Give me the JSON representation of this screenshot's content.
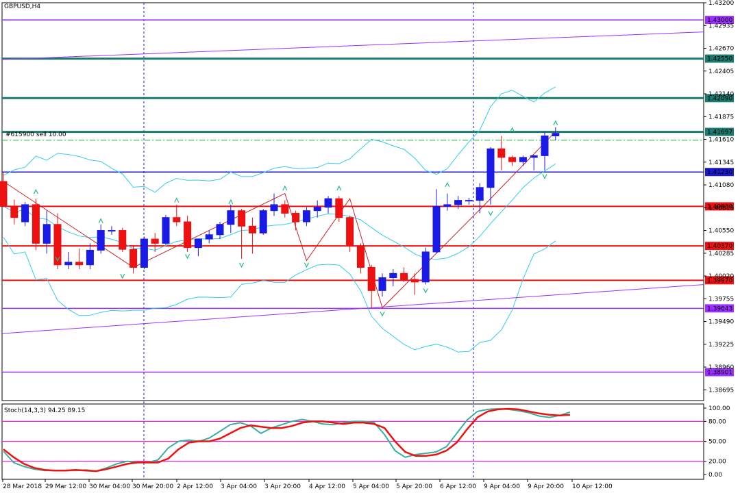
{
  "chart_data": {
    "type": "candlestick",
    "title": "GBPUSD,H4",
    "order_label": "#615900 sell 10.00",
    "ylim": [
      1.3857,
      1.432
    ],
    "price_ticks": [
      "1.43200",
      "1.42935",
      "1.42670",
      "1.42405",
      "1.42140",
      "1.41875",
      "1.41610",
      "1.41345",
      "1.41080",
      "1.40815",
      "1.40550",
      "1.40285",
      "1.40020",
      "1.39755",
      "1.39490",
      "1.39225",
      "1.38960",
      "1.38695"
    ],
    "x_labels": [
      "28 Mar 2018",
      "29 Mar 12:00",
      "30 Mar 04:00",
      "30 Mar 20:00",
      "2 Apr 12:00",
      "3 Apr 04:00",
      "3 Apr 20:00",
      "4 Apr 12:00",
      "5 Apr 04:00",
      "5 Apr 20:00",
      "6 Apr 12:00",
      "9 Apr 04:00",
      "9 Apr 20:00",
      "10 Apr 12:00"
    ],
    "levels": [
      {
        "value": 1.43,
        "label": "1.43000",
        "color": "#9b30ff"
      },
      {
        "value": 1.4255,
        "label": "1.42550",
        "color": "#1b7a6e"
      },
      {
        "value": 1.4209,
        "label": "1.42090",
        "color": "#1b7a6e"
      },
      {
        "value": 1.41697,
        "label": "1.41697",
        "color": "#1b7a6e"
      },
      {
        "value": 1.4123,
        "label": "1.41230",
        "color": "#1a1acc"
      },
      {
        "value": 1.4083,
        "label": "1.40830",
        "color": "#ee1111"
      },
      {
        "value": 1.4037,
        "label": "1.40370",
        "color": "#ee1111"
      },
      {
        "value": 1.3997,
        "label": "1.39970",
        "color": "#ee1111"
      },
      {
        "value": 1.39643,
        "label": "1.39643",
        "color": "#9b30ff"
      },
      {
        "value": 1.38901,
        "label": "1.38901",
        "color": "#9b30ff"
      }
    ],
    "candles": [
      {
        "o": 1.4112,
        "h": 1.4123,
        "l": 1.4083,
        "c": 1.4083
      },
      {
        "o": 1.4083,
        "h": 1.4091,
        "l": 1.4062,
        "c": 1.407
      },
      {
        "o": 1.4065,
        "h": 1.4088,
        "l": 1.406,
        "c": 1.4085
      },
      {
        "o": 1.4085,
        "h": 1.4092,
        "l": 1.4032,
        "c": 1.404
      },
      {
        "o": 1.404,
        "h": 1.4078,
        "l": 1.4028,
        "c": 1.4062
      },
      {
        "o": 1.4062,
        "h": 1.4075,
        "l": 1.401,
        "c": 1.4015
      },
      {
        "o": 1.4015,
        "h": 1.403,
        "l": 1.401,
        "c": 1.4018
      },
      {
        "o": 1.4018,
        "h": 1.4034,
        "l": 1.401,
        "c": 1.4015
      },
      {
        "o": 1.4015,
        "h": 1.404,
        "l": 1.401,
        "c": 1.4032
      },
      {
        "o": 1.4032,
        "h": 1.4062,
        "l": 1.4028,
        "c": 1.4055
      },
      {
        "o": 1.4055,
        "h": 1.406,
        "l": 1.405,
        "c": 1.4055
      },
      {
        "o": 1.4055,
        "h": 1.4058,
        "l": 1.403,
        "c": 1.4033
      },
      {
        "o": 1.4033,
        "h": 1.4038,
        "l": 1.4005,
        "c": 1.4012
      },
      {
        "o": 1.4012,
        "h": 1.4048,
        "l": 1.401,
        "c": 1.4045
      },
      {
        "o": 1.4045,
        "h": 1.4052,
        "l": 1.403,
        "c": 1.404
      },
      {
        "o": 1.404,
        "h": 1.4073,
        "l": 1.4038,
        "c": 1.407
      },
      {
        "o": 1.407,
        "h": 1.4085,
        "l": 1.406,
        "c": 1.4065
      },
      {
        "o": 1.4065,
        "h": 1.4072,
        "l": 1.403,
        "c": 1.4035
      },
      {
        "o": 1.4035,
        "h": 1.4045,
        "l": 1.4025,
        "c": 1.4045
      },
      {
        "o": 1.4045,
        "h": 1.4055,
        "l": 1.404,
        "c": 1.405
      },
      {
        "o": 1.405,
        "h": 1.4065,
        "l": 1.4045,
        "c": 1.4062
      },
      {
        "o": 1.4062,
        "h": 1.4085,
        "l": 1.4052,
        "c": 1.4078
      },
      {
        "o": 1.4078,
        "h": 1.408,
        "l": 1.4022,
        "c": 1.406
      },
      {
        "o": 1.406,
        "h": 1.407,
        "l": 1.4028,
        "c": 1.4052
      },
      {
        "o": 1.4052,
        "h": 1.408,
        "l": 1.405,
        "c": 1.4078
      },
      {
        "o": 1.4078,
        "h": 1.4098,
        "l": 1.4072,
        "c": 1.4085
      },
      {
        "o": 1.4085,
        "h": 1.409,
        "l": 1.407,
        "c": 1.4075
      },
      {
        "o": 1.4075,
        "h": 1.4078,
        "l": 1.4055,
        "c": 1.4065
      },
      {
        "o": 1.4065,
        "h": 1.4082,
        "l": 1.406,
        "c": 1.4078
      },
      {
        "o": 1.4078,
        "h": 1.409,
        "l": 1.407,
        "c": 1.4082
      },
      {
        "o": 1.4082,
        "h": 1.4095,
        "l": 1.4075,
        "c": 1.4092
      },
      {
        "o": 1.4092,
        "h": 1.4095,
        "l": 1.4065,
        "c": 1.407
      },
      {
        "o": 1.407,
        "h": 1.4072,
        "l": 1.403,
        "c": 1.4037
      },
      {
        "o": 1.4037,
        "h": 1.404,
        "l": 1.4005,
        "c": 1.4012
      },
      {
        "o": 1.4012,
        "h": 1.4015,
        "l": 1.3965,
        "c": 1.3985
      },
      {
        "o": 1.3985,
        "h": 1.4005,
        "l": 1.3978,
        "c": 1.4
      },
      {
        "o": 1.4,
        "h": 1.401,
        "l": 1.399,
        "c": 1.4005
      },
      {
        "o": 1.4005,
        "h": 1.4012,
        "l": 1.3995,
        "c": 1.3998
      },
      {
        "o": 1.3998,
        "h": 1.4005,
        "l": 1.398,
        "c": 1.3995
      },
      {
        "o": 1.3995,
        "h": 1.4035,
        "l": 1.3992,
        "c": 1.403
      },
      {
        "o": 1.403,
        "h": 1.4103,
        "l": 1.4028,
        "c": 1.4083
      },
      {
        "o": 1.4083,
        "h": 1.4098,
        "l": 1.4078,
        "c": 1.4085
      },
      {
        "o": 1.4085,
        "h": 1.4095,
        "l": 1.408,
        "c": 1.409
      },
      {
        "o": 1.409,
        "h": 1.4093,
        "l": 1.4085,
        "c": 1.409
      },
      {
        "o": 1.409,
        "h": 1.411,
        "l": 1.4075,
        "c": 1.4105
      },
      {
        "o": 1.4105,
        "h": 1.4152,
        "l": 1.4085,
        "c": 1.415
      },
      {
        "o": 1.415,
        "h": 1.4165,
        "l": 1.4125,
        "c": 1.414
      },
      {
        "o": 1.414,
        "h": 1.4142,
        "l": 1.413,
        "c": 1.4135
      },
      {
        "o": 1.4135,
        "h": 1.4142,
        "l": 1.413,
        "c": 1.414
      },
      {
        "o": 1.414,
        "h": 1.4143,
        "l": 1.4125,
        "c": 1.4142
      },
      {
        "o": 1.4142,
        "h": 1.417,
        "l": 1.4125,
        "c": 1.4165
      },
      {
        "o": 1.4165,
        "h": 1.4175,
        "l": 1.416,
        "c": 1.4168
      }
    ],
    "stochastic": {
      "label": "Stoch(14,3,3) 94.25 89.15",
      "ylim": [
        0,
        100
      ],
      "ticks": [
        "100.00",
        "80.00",
        "50.00",
        "20.00",
        "0.00"
      ],
      "levels": [
        80,
        50,
        20
      ],
      "main": [
        35,
        18,
        12,
        8,
        6,
        6,
        6,
        6,
        7,
        5,
        10,
        16,
        20,
        18,
        18,
        22,
        40,
        50,
        52,
        50,
        55,
        65,
        75,
        78,
        73,
        62,
        70,
        75,
        80,
        83,
        80,
        76,
        75,
        78,
        80,
        80,
        78,
        60,
        36,
        26,
        30,
        32,
        34,
        42,
        62,
        82,
        95,
        98,
        99,
        98,
        96,
        93,
        88,
        86,
        89,
        94
      ],
      "signal": [
        38,
        26,
        16,
        10,
        7,
        6,
        6,
        7,
        6,
        5,
        8,
        12,
        16,
        18,
        18,
        18,
        24,
        38,
        48,
        50,
        50,
        54,
        62,
        70,
        74,
        72,
        70,
        70,
        73,
        78,
        80,
        80,
        78,
        76,
        78,
        78,
        76,
        70,
        50,
        34,
        28,
        28,
        30,
        36,
        48,
        68,
        86,
        95,
        98,
        99,
        98,
        95,
        92,
        90,
        89,
        90
      ]
    }
  }
}
